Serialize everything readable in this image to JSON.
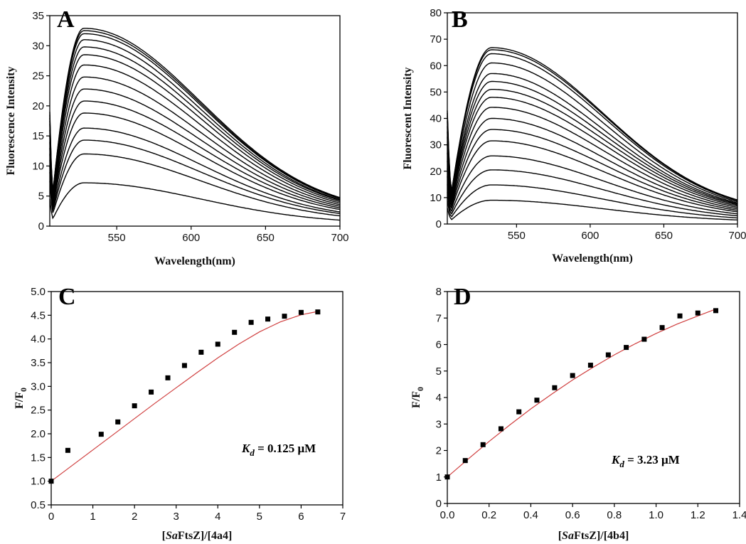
{
  "colors": {
    "curve": "#000000",
    "fit": "#d04040",
    "point": "#000000",
    "axis": "#000000"
  },
  "chart_data": [
    {
      "panel": "A",
      "type": "line",
      "xlabel": "Wavelength(nm)",
      "ylabel": "Fluorescence Intensity",
      "xlim": [
        505,
        700
      ],
      "ylim": [
        0,
        35
      ],
      "xticks": [
        550,
        600,
        650,
        700
      ],
      "yticks": [
        0,
        5,
        10,
        15,
        20,
        25,
        30,
        35
      ],
      "peak_x": 528,
      "start_x": 505,
      "end_x": 700,
      "series": [
        {
          "start": 4.5,
          "peak": 7.2,
          "end": 0.4
        },
        {
          "start": 7.5,
          "peak": 12.0,
          "end": 0.7
        },
        {
          "start": 9.0,
          "peak": 14.3,
          "end": 0.9
        },
        {
          "start": 10.0,
          "peak": 16.3,
          "end": 1.0
        },
        {
          "start": 11.0,
          "peak": 18.8,
          "end": 1.2
        },
        {
          "start": 12.0,
          "peak": 20.8,
          "end": 1.3
        },
        {
          "start": 13.0,
          "peak": 22.8,
          "end": 1.4
        },
        {
          "start": 14.0,
          "peak": 24.8,
          "end": 1.5
        },
        {
          "start": 15.0,
          "peak": 26.8,
          "end": 1.6
        },
        {
          "start": 16.0,
          "peak": 28.5,
          "end": 1.7
        },
        {
          "start": 17.0,
          "peak": 29.8,
          "end": 1.8
        },
        {
          "start": 17.5,
          "peak": 31.0,
          "end": 1.8
        },
        {
          "start": 18.0,
          "peak": 32.0,
          "end": 1.9
        },
        {
          "start": 18.5,
          "peak": 32.5,
          "end": 1.9
        },
        {
          "start": 19.0,
          "peak": 32.9,
          "end": 2.0
        }
      ]
    },
    {
      "panel": "B",
      "type": "line",
      "xlabel": "Wavelength(nm)",
      "ylabel": "Fluorescent Intensity",
      "xlim": [
        503,
        700
      ],
      "ylim": [
        0,
        80
      ],
      "xticks": [
        550,
        600,
        650,
        700
      ],
      "yticks": [
        0,
        10,
        20,
        30,
        40,
        50,
        60,
        70,
        80
      ],
      "peak_x": 533,
      "start_x": 503,
      "end_x": 700,
      "series": [
        {
          "start": 6.0,
          "peak": 9.0,
          "end": 0.8
        },
        {
          "start": 9.0,
          "peak": 14.8,
          "end": 1.1
        },
        {
          "start": 12.0,
          "peak": 20.5,
          "end": 1.4
        },
        {
          "start": 15.0,
          "peak": 25.8,
          "end": 1.7
        },
        {
          "start": 18.0,
          "peak": 31.5,
          "end": 2.0
        },
        {
          "start": 21.0,
          "peak": 35.8,
          "end": 2.2
        },
        {
          "start": 24.0,
          "peak": 40.0,
          "end": 2.4
        },
        {
          "start": 27.0,
          "peak": 44.2,
          "end": 2.6
        },
        {
          "start": 30.0,
          "peak": 48.0,
          "end": 2.8
        },
        {
          "start": 33.0,
          "peak": 51.0,
          "end": 3.0
        },
        {
          "start": 35.0,
          "peak": 54.0,
          "end": 3.1
        },
        {
          "start": 37.0,
          "peak": 57.0,
          "end": 3.2
        },
        {
          "start": 39.0,
          "peak": 61.0,
          "end": 3.3
        },
        {
          "start": 41.0,
          "peak": 64.5,
          "end": 3.4
        },
        {
          "start": 42.0,
          "peak": 66.0,
          "end": 3.5
        },
        {
          "start": 43.0,
          "peak": 66.8,
          "end": 3.5
        }
      ]
    },
    {
      "panel": "C",
      "type": "scatter",
      "xlabel_parts": [
        "[",
        "Sa",
        "FtsZ]/[4a4]"
      ],
      "ylabel_main": "F/F",
      "ylabel_sub": "0",
      "xlim": [
        0,
        7
      ],
      "ylim": [
        0.5,
        5.0
      ],
      "xticks": [
        0,
        1,
        2,
        3,
        4,
        5,
        6,
        7
      ],
      "yticks": [
        0.5,
        1.0,
        1.5,
        2.0,
        2.5,
        3.0,
        3.5,
        4.0,
        4.5,
        5.0
      ],
      "ytick_decimals": 1,
      "points": [
        [
          0,
          1.0
        ],
        [
          0.4,
          1.65
        ],
        [
          1.2,
          1.99
        ],
        [
          1.6,
          2.25
        ],
        [
          2.0,
          2.59
        ],
        [
          2.4,
          2.88
        ],
        [
          2.8,
          3.18
        ],
        [
          3.2,
          3.44
        ],
        [
          3.6,
          3.72
        ],
        [
          4.0,
          3.89
        ],
        [
          4.4,
          4.14
        ],
        [
          4.8,
          4.35
        ],
        [
          5.2,
          4.42
        ],
        [
          5.6,
          4.48
        ],
        [
          6.0,
          4.56
        ],
        [
          6.4,
          4.57
        ]
      ],
      "fit": [
        [
          0,
          1.0
        ],
        [
          0.5,
          1.33
        ],
        [
          1.0,
          1.66
        ],
        [
          1.5,
          1.99
        ],
        [
          2.0,
          2.32
        ],
        [
          2.5,
          2.65
        ],
        [
          3.0,
          2.97
        ],
        [
          3.5,
          3.29
        ],
        [
          4.0,
          3.6
        ],
        [
          4.5,
          3.89
        ],
        [
          5.0,
          4.15
        ],
        [
          5.5,
          4.36
        ],
        [
          6.0,
          4.51
        ],
        [
          6.4,
          4.58
        ]
      ],
      "kd_symbol": "K",
      "kd_sub": "d",
      "kd_text": " = 0.125 μM"
    },
    {
      "panel": "D",
      "type": "scatter",
      "xlabel_parts": [
        "[",
        "Sa",
        "FtsZ]/[4b4]"
      ],
      "ylabel_main": "F/F",
      "ylabel_sub": "0",
      "xlim": [
        0,
        1.4
      ],
      "ylim": [
        0,
        8
      ],
      "xticks": [
        0.0,
        0.2,
        0.4,
        0.6,
        0.8,
        1.0,
        1.2,
        1.4
      ],
      "xtick_decimals": 1,
      "yticks": [
        0,
        1,
        2,
        3,
        4,
        5,
        6,
        7,
        8
      ],
      "points": [
        [
          0,
          1.0
        ],
        [
          0.086,
          1.62
        ],
        [
          0.171,
          2.22
        ],
        [
          0.257,
          2.82
        ],
        [
          0.343,
          3.46
        ],
        [
          0.429,
          3.9
        ],
        [
          0.514,
          4.37
        ],
        [
          0.6,
          4.83
        ],
        [
          0.686,
          5.22
        ],
        [
          0.771,
          5.61
        ],
        [
          0.857,
          5.89
        ],
        [
          0.943,
          6.2
        ],
        [
          1.029,
          6.64
        ],
        [
          1.114,
          7.08
        ],
        [
          1.2,
          7.19
        ],
        [
          1.286,
          7.28
        ]
      ],
      "fit": [
        [
          0,
          1.0
        ],
        [
          0.1,
          1.68
        ],
        [
          0.2,
          2.34
        ],
        [
          0.3,
          2.97
        ],
        [
          0.4,
          3.57
        ],
        [
          0.5,
          4.13
        ],
        [
          0.6,
          4.66
        ],
        [
          0.7,
          5.15
        ],
        [
          0.8,
          5.61
        ],
        [
          0.9,
          6.03
        ],
        [
          1.0,
          6.42
        ],
        [
          1.1,
          6.77
        ],
        [
          1.2,
          7.08
        ],
        [
          1.29,
          7.35
        ]
      ],
      "kd_symbol": "K",
      "kd_sub": "d",
      "kd_text": " = 3.23 μM"
    }
  ]
}
